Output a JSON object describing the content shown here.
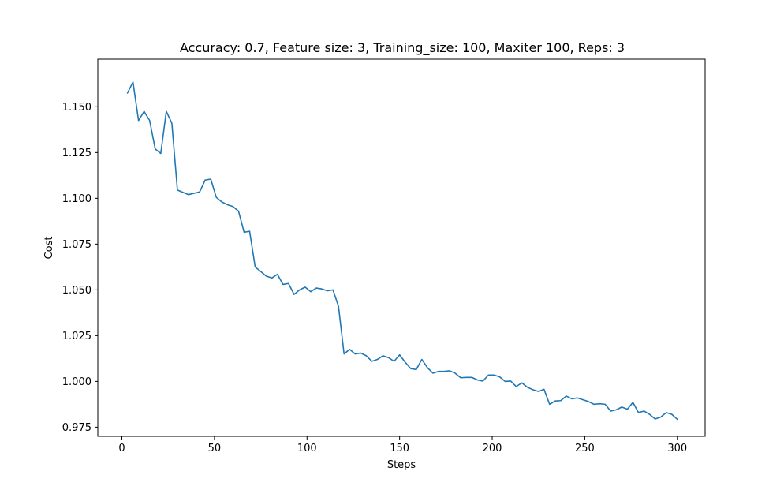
{
  "chart_data": {
    "type": "line",
    "title": "Accuracy: 0.7, Feature size: 3, Training_size: 100, Maxiter 100, Reps: 3",
    "xlabel": "Steps",
    "ylabel": "Cost",
    "xlim": [
      -13,
      315
    ],
    "ylim": [
      0.97,
      1.176
    ],
    "xticks": [
      0,
      50,
      100,
      150,
      200,
      250,
      300
    ],
    "xtick_labels": [
      "0",
      "50",
      "100",
      "150",
      "200",
      "250",
      "300"
    ],
    "yticks": [
      0.975,
      1.0,
      1.025,
      1.05,
      1.075,
      1.1,
      1.125,
      1.15
    ],
    "ytick_labels": [
      "0.975",
      "1.000",
      "1.025",
      "1.050",
      "1.075",
      "1.100",
      "1.125",
      "1.150"
    ],
    "grid": false,
    "series": [
      {
        "color": "#1f77b4",
        "x": [
          3,
          6,
          9,
          12,
          15,
          18,
          21,
          24,
          27,
          30,
          36,
          42,
          45,
          48,
          51,
          54,
          57,
          60,
          63,
          66,
          69,
          72,
          75,
          78,
          81,
          84,
          87,
          90,
          93,
          96,
          99,
          102,
          105,
          108,
          111,
          114,
          117,
          120,
          123,
          126,
          129,
          132,
          135,
          138,
          141,
          144,
          147,
          150,
          153,
          156,
          159,
          162,
          165,
          168,
          171,
          174,
          177,
          180,
          183,
          186,
          189,
          192,
          195,
          198,
          201,
          204,
          207,
          210,
          213,
          216,
          219,
          222,
          225,
          228,
          231,
          234,
          237,
          240,
          243,
          246,
          249,
          252,
          255,
          258,
          261,
          264,
          267,
          270,
          273,
          276,
          279,
          282,
          285,
          288,
          291,
          294,
          297,
          300
        ],
        "y": [
          1.1575,
          1.1635,
          1.1425,
          1.1475,
          1.1425,
          1.127,
          1.1245,
          1.1475,
          1.141,
          1.1045,
          1.102,
          1.1035,
          1.11,
          1.1105,
          1.1005,
          1.098,
          1.0965,
          1.0955,
          1.093,
          1.0815,
          1.082,
          1.0625,
          1.06,
          1.0575,
          1.0565,
          1.0585,
          1.053,
          1.0535,
          1.0475,
          1.05,
          1.0515,
          1.049,
          1.051,
          1.0505,
          1.0495,
          1.05,
          1.041,
          1.015,
          1.0175,
          1.015,
          1.0155,
          1.014,
          1.011,
          1.012,
          1.014,
          1.013,
          1.011,
          1.0145,
          1.0105,
          1.007,
          1.0065,
          1.012,
          1.0075,
          1.0045,
          1.0055,
          1.0055,
          1.0058,
          1.0045,
          1.002,
          1.0022,
          1.0022,
          1.0008,
          1.0002,
          1.0035,
          1.0035,
          1.0025,
          1.0,
          1.0002,
          0.9972,
          0.9992,
          0.9968,
          0.9955,
          0.9945,
          0.9957,
          0.9875,
          0.9893,
          0.9895,
          0.992,
          0.9905,
          0.991,
          0.99,
          0.989,
          0.9875,
          0.9878,
          0.9875,
          0.9838,
          0.9845,
          0.986,
          0.9848,
          0.9885,
          0.983,
          0.9838,
          0.982,
          0.9795,
          0.9805,
          0.983,
          0.982,
          0.9793
        ]
      }
    ]
  }
}
